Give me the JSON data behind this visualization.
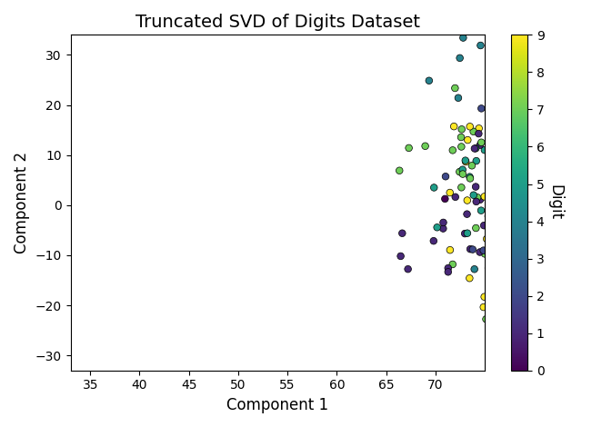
{
  "title": "Truncated SVD of Digits Dataset",
  "xlabel": "Component 1",
  "ylabel": "Component 2",
  "xlim": [
    33,
    75
  ],
  "ylim": [
    -33,
    34
  ],
  "colormap": "viridis",
  "cbar_label": "Digit",
  "cbar_ticks": [
    0,
    1,
    2,
    3,
    4,
    5,
    6,
    7,
    8,
    9
  ],
  "marker_size": 30,
  "marker_edge_color": "black",
  "marker_edge_width": 0.5,
  "alpha": 1.0,
  "random_seed": 42,
  "title_fontsize": 14,
  "label_fontsize": 12,
  "xticks": [
    35,
    40,
    45,
    50,
    55,
    60,
    65,
    70
  ],
  "yticks": [
    -30,
    -20,
    -10,
    0,
    10,
    20,
    30
  ]
}
